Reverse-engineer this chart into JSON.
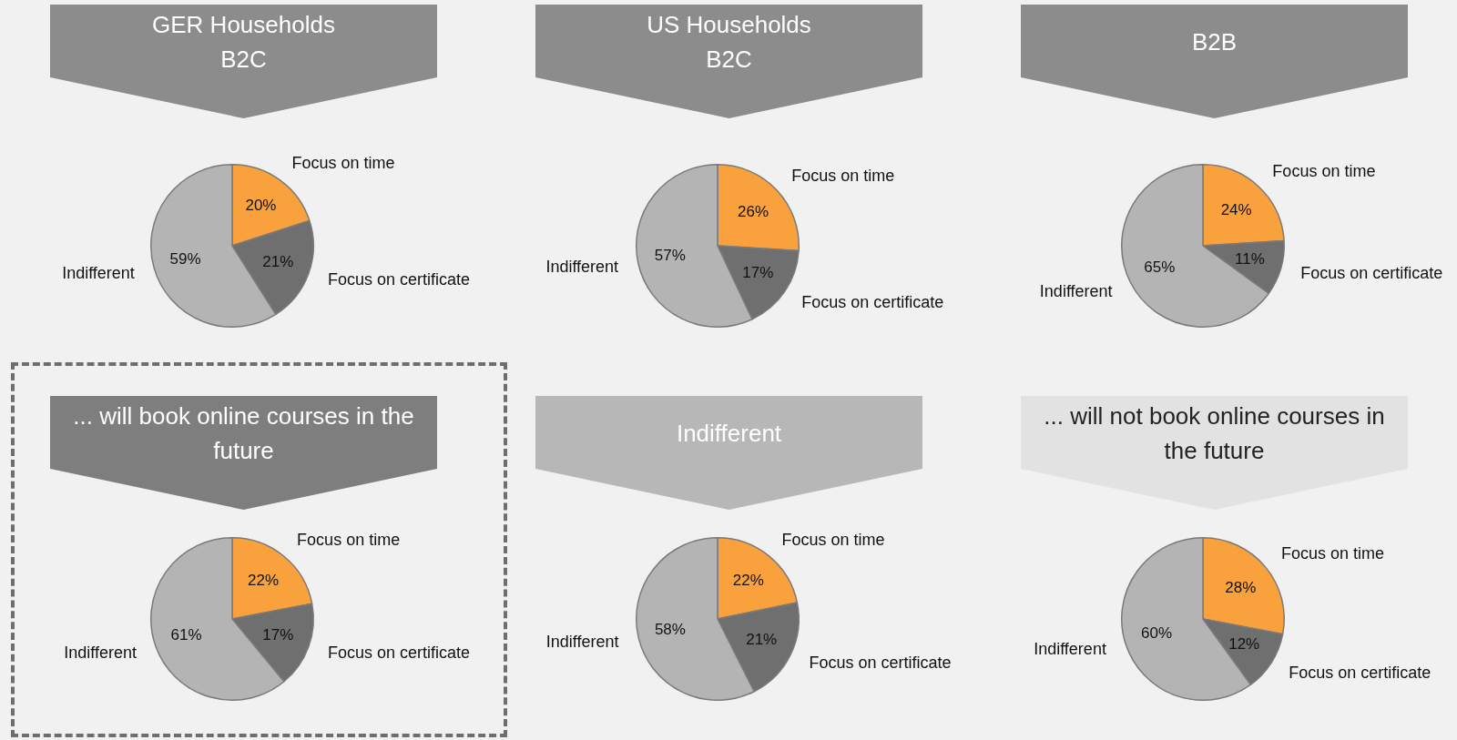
{
  "chart_data": [
    {
      "type": "pie",
      "title": "GER Households\nB2C",
      "categories": [
        "Focus on time",
        "Focus on certificate",
        "Indifferent"
      ],
      "values": [
        20,
        21,
        59
      ],
      "value_labels": [
        "20%",
        "21%",
        "59%"
      ],
      "colors": [
        "#f9a13c",
        "#6f6f6f",
        "#b4b4b4"
      ],
      "legend": false
    },
    {
      "type": "pie",
      "title": "US Households\nB2C",
      "categories": [
        "Focus on time",
        "Focus on certificate",
        "Indifferent"
      ],
      "values": [
        26,
        17,
        57
      ],
      "value_labels": [
        "26%",
        "17%",
        "57%"
      ],
      "colors": [
        "#f9a13c",
        "#6f6f6f",
        "#b4b4b4"
      ],
      "legend": false
    },
    {
      "type": "pie",
      "title": "B2B",
      "categories": [
        "Focus on time",
        "Focus on certificate",
        "Indifferent"
      ],
      "values": [
        24,
        11,
        65
      ],
      "value_labels": [
        "24%",
        "11%",
        "65%"
      ],
      "colors": [
        "#f9a13c",
        "#6f6f6f",
        "#b4b4b4"
      ],
      "legend": false
    },
    {
      "type": "pie",
      "title": "... will book online courses in the future",
      "categories": [
        "Focus on time",
        "Focus on certificate",
        "Indifferent"
      ],
      "values": [
        22,
        17,
        61
      ],
      "value_labels": [
        "22%",
        "17%",
        "61%"
      ],
      "colors": [
        "#f9a13c",
        "#6f6f6f",
        "#b4b4b4"
      ],
      "legend": false
    },
    {
      "type": "pie",
      "title": "Indifferent",
      "categories": [
        "Focus on time",
        "Focus on certificate",
        "Indifferent"
      ],
      "values": [
        22,
        21,
        58
      ],
      "value_labels": [
        "22%",
        "21%",
        "58%"
      ],
      "colors": [
        "#f9a13c",
        "#6f6f6f",
        "#b4b4b4"
      ],
      "legend": false
    },
    {
      "type": "pie",
      "title": "... will not book online courses in the future",
      "categories": [
        "Focus on time",
        "Focus on certificate",
        "Indifferent"
      ],
      "values": [
        28,
        12,
        60
      ],
      "value_labels": [
        "28%",
        "12%",
        "60%"
      ],
      "colors": [
        "#f9a13c",
        "#6f6f6f",
        "#b4b4b4"
      ],
      "legend": false
    }
  ]
}
